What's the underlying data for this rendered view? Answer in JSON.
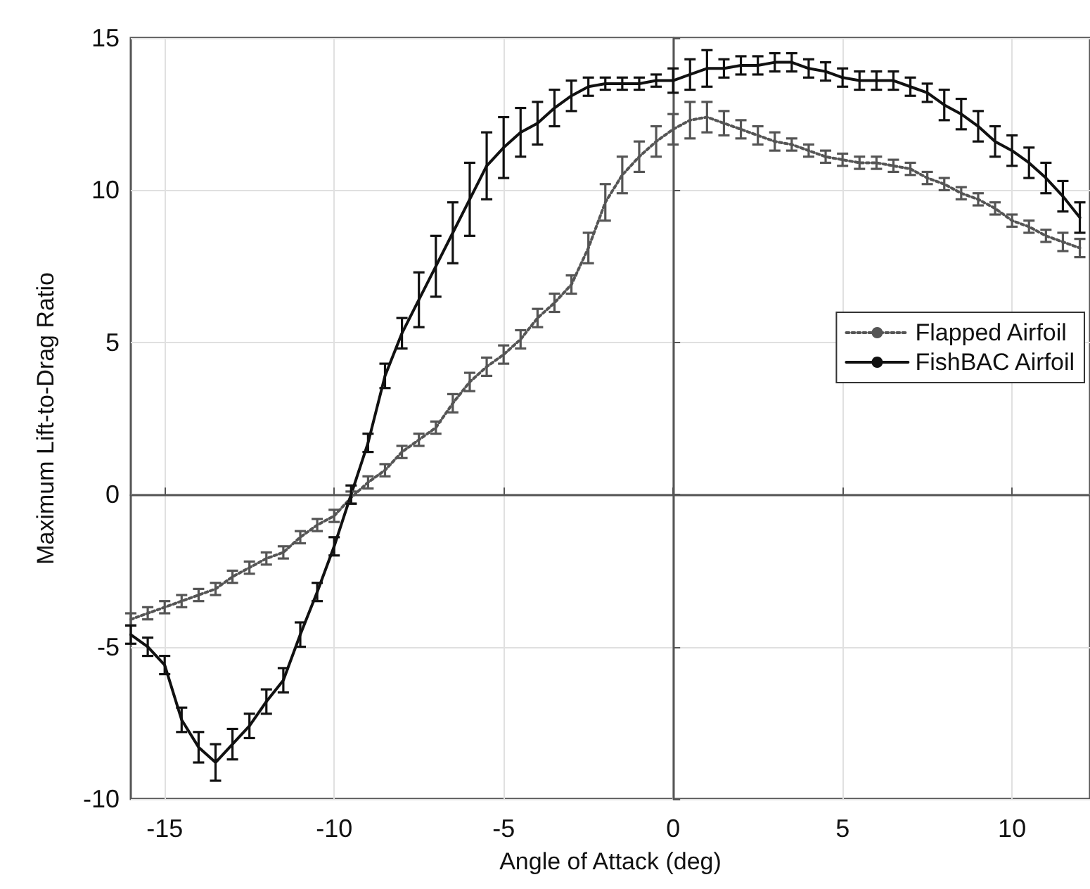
{
  "chart_data": {
    "type": "line",
    "xlabel": "Angle of Attack (deg)",
    "ylabel": "Maximum Lift-to-Drag Ratio",
    "x": [
      -16,
      -15.5,
      -15,
      -14.5,
      -14,
      -13.5,
      -13,
      -12.5,
      -12,
      -11.5,
      -11,
      -10.5,
      -10,
      -9.5,
      -9,
      -8.5,
      -8,
      -7.5,
      -7,
      -6.5,
      -6,
      -5.5,
      -5,
      -4.5,
      -4,
      -3.5,
      -3,
      -2.5,
      -2,
      -1.5,
      -1,
      -0.5,
      0,
      0.5,
      1,
      1.5,
      2,
      2.5,
      3,
      3.5,
      4,
      4.5,
      5,
      5.5,
      6,
      6.5,
      7,
      7.5,
      8,
      8.5,
      9,
      9.5,
      10,
      10.5,
      11,
      11.5,
      12
    ],
    "series": [
      {
        "name": "Flapped Airfoil",
        "color": "#555555",
        "line_style": "dotted",
        "values": [
          -4.1,
          -3.9,
          -3.7,
          -3.5,
          -3.3,
          -3.1,
          -2.7,
          -2.4,
          -2.1,
          -1.9,
          -1.4,
          -1.0,
          -0.7,
          -0.1,
          0.4,
          0.8,
          1.4,
          1.8,
          2.2,
          3.0,
          3.7,
          4.2,
          4.6,
          5.1,
          5.8,
          6.3,
          6.9,
          8.1,
          9.6,
          10.5,
          11.1,
          11.6,
          12.0,
          12.3,
          12.4,
          12.2,
          12.0,
          11.8,
          11.6,
          11.5,
          11.3,
          11.1,
          11.0,
          10.9,
          10.9,
          10.8,
          10.7,
          10.4,
          10.2,
          9.9,
          9.7,
          9.4,
          9.0,
          8.8,
          8.5,
          8.3,
          8.1
        ],
        "errors": [
          0.2,
          0.2,
          0.2,
          0.2,
          0.2,
          0.2,
          0.2,
          0.2,
          0.2,
          0.2,
          0.2,
          0.2,
          0.2,
          0.2,
          0.2,
          0.2,
          0.2,
          0.2,
          0.2,
          0.3,
          0.3,
          0.3,
          0.3,
          0.3,
          0.3,
          0.3,
          0.3,
          0.5,
          0.6,
          0.6,
          0.5,
          0.5,
          0.5,
          0.6,
          0.5,
          0.4,
          0.3,
          0.3,
          0.3,
          0.2,
          0.2,
          0.2,
          0.2,
          0.2,
          0.2,
          0.2,
          0.2,
          0.2,
          0.2,
          0.2,
          0.2,
          0.2,
          0.2,
          0.2,
          0.2,
          0.3,
          0.3
        ]
      },
      {
        "name": "FishBAC Airfoil",
        "color": "#111111",
        "line_style": "solid",
        "values": [
          -4.6,
          -5.0,
          -5.6,
          -7.4,
          -8.3,
          -8.8,
          -8.2,
          -7.6,
          -6.8,
          -6.1,
          -4.6,
          -3.2,
          -1.7,
          0.0,
          1.7,
          3.9,
          5.3,
          6.4,
          7.5,
          8.6,
          9.7,
          10.8,
          11.4,
          11.9,
          12.2,
          12.7,
          13.1,
          13.4,
          13.5,
          13.5,
          13.5,
          13.6,
          13.6,
          13.8,
          14.0,
          14.0,
          14.1,
          14.1,
          14.2,
          14.2,
          14.0,
          13.9,
          13.7,
          13.6,
          13.6,
          13.6,
          13.4,
          13.2,
          12.8,
          12.5,
          12.1,
          11.6,
          11.3,
          10.9,
          10.4,
          9.8,
          9.1
        ],
        "errors": [
          0.3,
          0.3,
          0.3,
          0.4,
          0.5,
          0.6,
          0.5,
          0.4,
          0.4,
          0.4,
          0.4,
          0.3,
          0.3,
          0.3,
          0.3,
          0.4,
          0.5,
          0.9,
          1.0,
          1.0,
          1.2,
          1.1,
          1.0,
          0.8,
          0.7,
          0.6,
          0.5,
          0.3,
          0.2,
          0.2,
          0.2,
          0.2,
          0.4,
          0.5,
          0.6,
          0.3,
          0.3,
          0.3,
          0.3,
          0.3,
          0.3,
          0.3,
          0.3,
          0.3,
          0.3,
          0.3,
          0.3,
          0.3,
          0.5,
          0.5,
          0.5,
          0.5,
          0.5,
          0.5,
          0.5,
          0.5,
          0.5
        ]
      }
    ],
    "xlim": [
      -16,
      12.3
    ],
    "ylim": [
      -10,
      15
    ],
    "xticks": [
      -15,
      -10,
      -5,
      0,
      5,
      10
    ],
    "yticks": [
      -10,
      -5,
      0,
      5,
      10,
      15
    ],
    "grid": true,
    "legend": "right",
    "marker": "none"
  }
}
